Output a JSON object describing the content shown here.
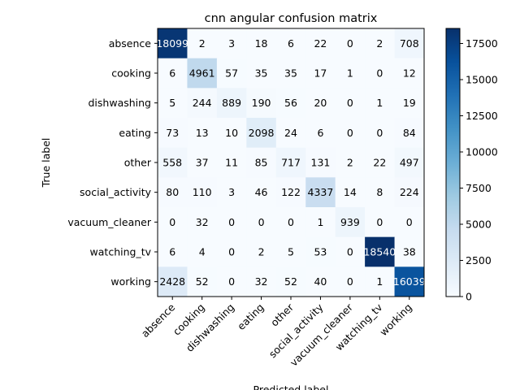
{
  "chart_data": {
    "type": "heatmap",
    "title": "cnn angular confusion matrix",
    "xlabel": "Predicted label",
    "ylabel": "True label",
    "labels": [
      "absence",
      "cooking",
      "dishwashing",
      "eating",
      "other",
      "social_activity",
      "vacuum_cleaner",
      "watching_tv",
      "working"
    ],
    "matrix": [
      [
        18099,
        2,
        3,
        18,
        6,
        22,
        0,
        2,
        708
      ],
      [
        6,
        4961,
        57,
        35,
        35,
        17,
        1,
        0,
        12
      ],
      [
        5,
        244,
        889,
        190,
        56,
        20,
        0,
        1,
        19
      ],
      [
        73,
        13,
        10,
        2098,
        24,
        6,
        0,
        0,
        84
      ],
      [
        558,
        37,
        11,
        85,
        717,
        131,
        2,
        22,
        497
      ],
      [
        80,
        110,
        3,
        46,
        122,
        4337,
        14,
        8,
        224
      ],
      [
        0,
        32,
        0,
        0,
        0,
        1,
        939,
        0,
        0
      ],
      [
        6,
        4,
        0,
        2,
        5,
        53,
        0,
        18540,
        38
      ],
      [
        2428,
        52,
        0,
        32,
        52,
        40,
        0,
        1,
        16039
      ]
    ],
    "colormap": "Blues",
    "vmin": 0,
    "vmax": 18540,
    "colorbar_ticks": [
      0,
      2500,
      5000,
      7500,
      10000,
      12500,
      15000,
      17500
    ]
  }
}
